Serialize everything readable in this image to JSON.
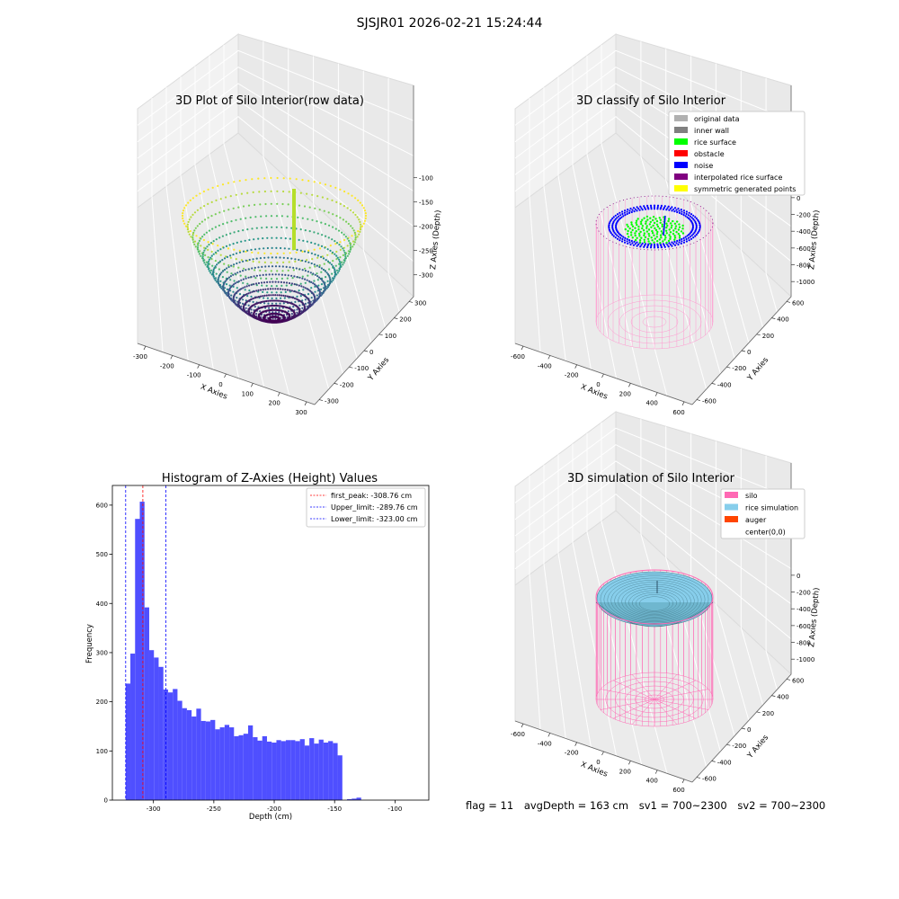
{
  "suptitle": "SJSJR01 2026-02-21 15:24:44",
  "footer": {
    "flag": "flag = 11",
    "avg_depth": "avgDepth = 163 cm",
    "sv1": "sv1 = 700~2300",
    "sv2": "sv2 = 700~2300"
  },
  "colors": {
    "histogram_bar": "#4f4fff",
    "first_peak_line": "#ff0000",
    "limit_line": "#0000ff",
    "original_data": "#b0b0b0",
    "inner_wall": "#808080",
    "rice_surface": "#00ff00",
    "obstacle": "#ff0000",
    "noise": "#0000ff",
    "interpolated_rice_surface": "#800080",
    "symmetric_generated_points": "#ffff00",
    "silo": "#ff69b4",
    "rice_simulation": "#87ceeb",
    "auger": "#ff4500"
  },
  "chart_data": [
    {
      "type": "scatter",
      "subtype": "3d",
      "title": "3D Plot of Silo Interior(row data)",
      "xlabel": "X Axies",
      "ylabel": "Y Axies",
      "zlabel": "Z Axies (Depth)",
      "x_ticks": [
        "-300",
        "-200",
        "-100",
        "0",
        "100",
        "200",
        "300"
      ],
      "y_ticks": [
        "300",
        "200",
        "100",
        "0",
        "-100",
        "-200",
        "-300"
      ],
      "z_ticks": [
        "-100",
        "-150",
        "-200",
        "-250",
        "-300"
      ],
      "colormap": "viridis",
      "xlim": [
        -330,
        330
      ],
      "ylim": [
        -330,
        330
      ],
      "zlim": [
        -330,
        -90
      ]
    },
    {
      "type": "scatter",
      "subtype": "3d",
      "title": "3D classify of Silo Interior",
      "xlabel": "X Axies",
      "ylabel": "Y Axies",
      "zlabel": "Z Axies (Depth)",
      "x_ticks": [
        "-600",
        "-400",
        "-200",
        "0",
        "200",
        "400",
        "600"
      ],
      "y_ticks": [
        "600",
        "400",
        "200",
        "0",
        "-200",
        "-400",
        "-600"
      ],
      "z_ticks": [
        "0",
        "-200",
        "-400",
        "-600",
        "-800",
        "-1000"
      ],
      "legend": [
        "original data",
        "inner wall",
        "rice surface",
        "obstacle",
        "noise",
        "interpolated rice surface",
        "symmetric generated points"
      ],
      "legend_placement": "top-right"
    },
    {
      "type": "bar",
      "subtype": "histogram",
      "title": "Histogram of Z-Axies (Height) Values",
      "xlabel": "Depth (cm)",
      "ylabel": "Frequency",
      "x_ticks": [
        "-300",
        "-250",
        "-200",
        "-150",
        "-100"
      ],
      "y_ticks": [
        "0",
        "100",
        "200",
        "300",
        "400",
        "500",
        "600"
      ],
      "xlim": [
        -334,
        -72
      ],
      "ylim": [
        0,
        640
      ],
      "bin_start": -323,
      "bin_width": 3.9,
      "values": [
        237,
        298,
        572,
        607,
        392,
        305,
        290,
        271,
        225,
        219,
        226,
        202,
        187,
        183,
        170,
        186,
        161,
        160,
        163,
        144,
        148,
        153,
        148,
        130,
        132,
        135,
        152,
        128,
        121,
        130,
        119,
        117,
        122,
        120,
        122,
        122,
        120,
        124,
        111,
        126,
        115,
        123,
        117,
        120,
        116,
        91,
        0,
        2,
        3,
        5
      ],
      "vlines": [
        {
          "label": "first_peak: -308.76 cm",
          "x": -308.76,
          "color": "red"
        },
        {
          "label": "Upper_limit: -289.76 cm",
          "x": -289.76,
          "color": "blue"
        },
        {
          "label": "Lower_limit: -323.00 cm",
          "x": -323.0,
          "color": "blue"
        }
      ],
      "legend_placement": "top-right"
    },
    {
      "type": "area",
      "subtype": "3d",
      "title": "3D simulation of Silo Interior",
      "xlabel": "X Axies",
      "ylabel": "Y Axies",
      "zlabel": "Z Axies (Depth)",
      "x_ticks": [
        "-600",
        "-400",
        "-200",
        "0",
        "200",
        "400",
        "600"
      ],
      "y_ticks": [
        "600",
        "400",
        "200",
        "0",
        "-200",
        "-400",
        "-600"
      ],
      "z_ticks": [
        "0",
        "-200",
        "-400",
        "-600",
        "-800",
        "-1000"
      ],
      "legend": [
        "silo",
        "rice simulation",
        "auger",
        "center(0,0)"
      ],
      "legend_placement": "top-right"
    }
  ]
}
